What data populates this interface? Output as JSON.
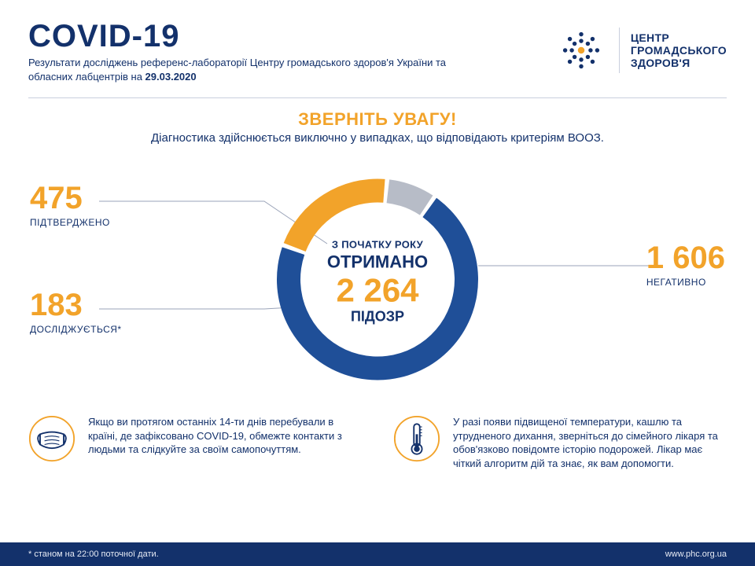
{
  "colors": {
    "orange": "#f2a32a",
    "navy": "#13316b",
    "blue_ring": "#1f4f98",
    "grey": "#b7bcc7",
    "divider": "#c9cfdd",
    "footer_bg": "#13316b",
    "footer_text": "#e7ebf5",
    "background": "#ffffff"
  },
  "header": {
    "title": "COVID-19",
    "subtitle_prefix": "Результати досліджень референс-лабораторії Центру громадського здоров'я України та обласних лабцентрів на ",
    "date": "29.03.2020",
    "brand_line1": "ЦЕНТР",
    "brand_line2": "ГРОМАДСЬКОГО",
    "brand_line3": "ЗДОРОВ'Я"
  },
  "attention": {
    "title": "ЗВЕРНІТЬ УВАГУ!",
    "subtitle": "Діагностика здійснюється виключно у випадках, що відповідають критеріям ВООЗ."
  },
  "donut": {
    "type": "donut",
    "total": 2264,
    "center_line1": "З ПОЧАТКУ РОКУ",
    "center_line2": "ОТРИМАНО",
    "center_number": "2 264",
    "center_line4": "ПІДОЗР",
    "outer_radius": 128,
    "inner_radius": 98,
    "gap_deg": 2.5,
    "start_angle_deg": 200,
    "segments": [
      {
        "key": "confirmed",
        "value": 475,
        "color": "#f2a32a"
      },
      {
        "key": "pending",
        "value": 183,
        "color": "#b7bcc7"
      },
      {
        "key": "negative",
        "value": 1606,
        "color": "#1f4f98"
      }
    ]
  },
  "stats": {
    "confirmed": {
      "number": "475",
      "label": "ПІДТВЕРДЖЕНО",
      "color": "#f2a32a"
    },
    "pending": {
      "number": "183",
      "label": "ДОСЛІДЖУЄТЬСЯ*",
      "color": "#f2a32a"
    },
    "negative": {
      "number": "1 606",
      "label": "НЕГАТИВНО",
      "color": "#f2a32a"
    }
  },
  "info": {
    "left": "Якщо ви протягом останніх 14-ти днів перебували в країні, де зафіксовано COVID-19, обмежте контакти з людьми та слідкуйте за своїм самопочуттям.",
    "right": "У разі появи підвищеної температури, кашлю та утрудненого дихання, зверніться до сімейного лікаря та обов'язково повідомте історію подорожей. Лікар має чіткий алгоритм дій та знає, як вам допомогти."
  },
  "footer": {
    "note": "* станом на 22:00 поточної дати.",
    "url": "www.phc.org.ua"
  }
}
